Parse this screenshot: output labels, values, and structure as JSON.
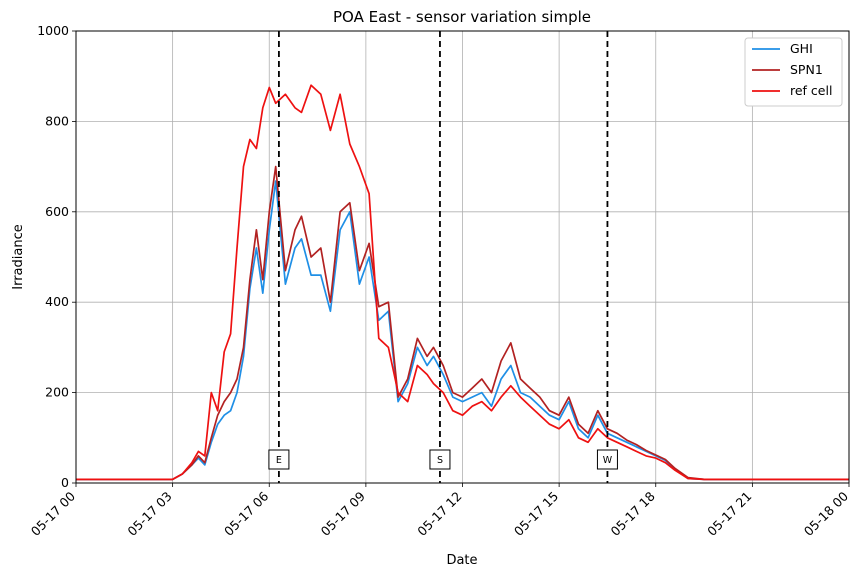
{
  "chart_data": {
    "type": "line",
    "title": "POA East - sensor variation simple",
    "xlabel": "Date",
    "ylabel": "Irradiance",
    "xlim": [
      0,
      24
    ],
    "ylim": [
      0,
      1000
    ],
    "grid": true,
    "legend_position": "top-right",
    "x_ticks": [
      {
        "h": 0,
        "label": "05-17 00"
      },
      {
        "h": 3,
        "label": "05-17 03"
      },
      {
        "h": 6,
        "label": "05-17 06"
      },
      {
        "h": 9,
        "label": "05-17 09"
      },
      {
        "h": 12,
        "label": "05-17 12"
      },
      {
        "h": 15,
        "label": "05-17 15"
      },
      {
        "h": 18,
        "label": "05-17 18"
      },
      {
        "h": 21,
        "label": "05-17 21"
      },
      {
        "h": 24,
        "label": "05-18 00"
      }
    ],
    "y_ticks": [
      0,
      200,
      400,
      600,
      800,
      1000
    ],
    "series": [
      {
        "name": "GHI",
        "color": "#1f8fe6",
        "x": [
          0,
          3,
          3.3,
          3.6,
          3.8,
          4.0,
          4.2,
          4.4,
          4.6,
          4.8,
          5.0,
          5.2,
          5.4,
          5.6,
          5.8,
          6.0,
          6.2,
          6.5,
          6.8,
          7.0,
          7.3,
          7.6,
          7.9,
          8.2,
          8.5,
          8.8,
          9.1,
          9.4,
          9.7,
          10.0,
          10.3,
          10.6,
          10.9,
          11.1,
          11.4,
          11.7,
          12.0,
          12.3,
          12.6,
          12.9,
          13.2,
          13.5,
          13.8,
          14.1,
          14.4,
          14.7,
          15.0,
          15.3,
          15.6,
          15.9,
          16.2,
          16.5,
          16.8,
          17.1,
          17.4,
          17.7,
          18.0,
          18.3,
          18.6,
          19.0,
          19.5,
          21,
          24
        ],
        "y": [
          8,
          8,
          20,
          40,
          55,
          40,
          90,
          130,
          150,
          160,
          200,
          280,
          430,
          520,
          420,
          560,
          668,
          440,
          520,
          540,
          460,
          460,
          380,
          560,
          600,
          440,
          500,
          360,
          380,
          180,
          220,
          300,
          260,
          280,
          240,
          190,
          180,
          190,
          200,
          170,
          230,
          260,
          200,
          190,
          170,
          150,
          140,
          180,
          120,
          100,
          150,
          110,
          100,
          90,
          80,
          70,
          60,
          50,
          30,
          10,
          8,
          8,
          8
        ]
      },
      {
        "name": "SPN1",
        "color": "#b22222",
        "x": [
          0,
          3,
          3.3,
          3.6,
          3.8,
          4.0,
          4.2,
          4.4,
          4.6,
          4.8,
          5.0,
          5.2,
          5.4,
          5.6,
          5.8,
          6.0,
          6.2,
          6.5,
          6.8,
          7.0,
          7.3,
          7.6,
          7.9,
          8.2,
          8.5,
          8.8,
          9.1,
          9.4,
          9.7,
          10.0,
          10.3,
          10.6,
          10.9,
          11.1,
          11.4,
          11.7,
          12.0,
          12.3,
          12.6,
          12.9,
          13.2,
          13.5,
          13.8,
          14.1,
          14.4,
          14.7,
          15.0,
          15.3,
          15.6,
          15.9,
          16.2,
          16.5,
          16.8,
          17.1,
          17.4,
          17.7,
          18.0,
          18.3,
          18.6,
          19.0,
          19.5,
          21,
          24
        ],
        "y": [
          8,
          8,
          20,
          40,
          60,
          45,
          100,
          150,
          180,
          200,
          230,
          300,
          450,
          560,
          450,
          600,
          700,
          470,
          560,
          590,
          500,
          520,
          400,
          600,
          620,
          470,
          530,
          390,
          400,
          190,
          230,
          320,
          280,
          300,
          260,
          200,
          190,
          210,
          230,
          200,
          270,
          310,
          230,
          210,
          190,
          160,
          150,
          190,
          130,
          110,
          160,
          120,
          110,
          95,
          85,
          72,
          62,
          52,
          32,
          12,
          8,
          8,
          8
        ]
      },
      {
        "name": "ref cell",
        "color": "#ee1111",
        "x": [
          0,
          3,
          3.3,
          3.6,
          3.8,
          4.0,
          4.2,
          4.4,
          4.6,
          4.8,
          5.0,
          5.2,
          5.4,
          5.6,
          5.8,
          6.0,
          6.2,
          6.5,
          6.8,
          7.0,
          7.3,
          7.6,
          7.9,
          8.2,
          8.5,
          8.8,
          9.1,
          9.4,
          9.7,
          10.0,
          10.3,
          10.6,
          10.9,
          11.1,
          11.4,
          11.7,
          12.0,
          12.3,
          12.6,
          12.9,
          13.2,
          13.5,
          13.8,
          14.1,
          14.4,
          14.7,
          15.0,
          15.3,
          15.6,
          15.9,
          16.2,
          16.5,
          16.8,
          17.1,
          17.4,
          17.7,
          18.0,
          18.3,
          18.6,
          19.0,
          19.5,
          21,
          24
        ],
        "y": [
          8,
          8,
          20,
          45,
          70,
          60,
          200,
          160,
          290,
          330,
          520,
          700,
          760,
          740,
          830,
          875,
          840,
          860,
          830,
          820,
          880,
          860,
          780,
          860,
          750,
          700,
          640,
          320,
          300,
          200,
          180,
          260,
          240,
          220,
          200,
          160,
          150,
          170,
          180,
          160,
          190,
          215,
          190,
          170,
          150,
          130,
          120,
          140,
          100,
          90,
          120,
          100,
          90,
          80,
          70,
          60,
          55,
          45,
          28,
          10,
          8,
          8,
          8
        ]
      }
    ],
    "vlines": [
      {
        "h": 6.3,
        "label": "E"
      },
      {
        "h": 11.3,
        "label": "S"
      },
      {
        "h": 16.5,
        "label": "W"
      }
    ],
    "legend": [
      "GHI",
      "SPN1",
      "ref cell"
    ]
  }
}
